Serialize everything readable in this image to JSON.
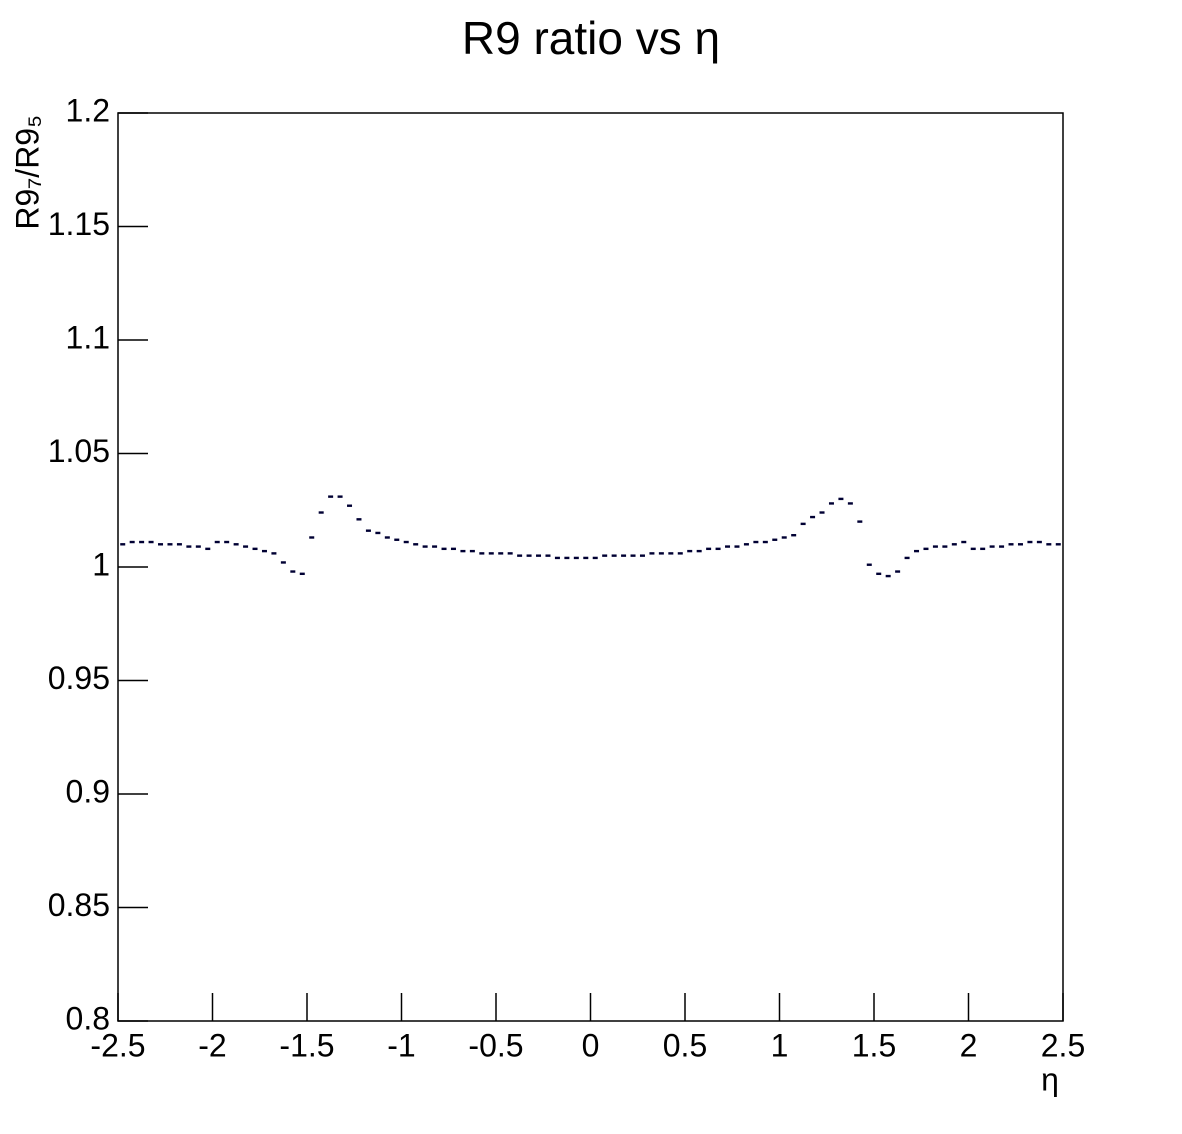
{
  "chart_data": {
    "type": "scatter",
    "title": "R9 ratio vs η",
    "xlabel": "η",
    "ylabel": "R9₇/R9₅",
    "color": "#000033",
    "xlim": [
      -2.5,
      2.5
    ],
    "ylim": [
      0.8,
      1.2
    ],
    "xticks": [
      -2.5,
      -2,
      -1.5,
      -1,
      -0.5,
      0,
      0.5,
      1,
      1.5,
      2,
      2.5
    ],
    "yticks": [
      0.8,
      0.85,
      0.9,
      0.95,
      1,
      1.05,
      1.1,
      1.15,
      1.2
    ],
    "x": [
      -2.475,
      -2.425,
      -2.375,
      -2.325,
      -2.275,
      -2.225,
      -2.175,
      -2.125,
      -2.075,
      -2.025,
      -1.975,
      -1.925,
      -1.875,
      -1.825,
      -1.775,
      -1.725,
      -1.675,
      -1.625,
      -1.575,
      -1.525,
      -1.475,
      -1.425,
      -1.375,
      -1.325,
      -1.275,
      -1.225,
      -1.175,
      -1.125,
      -1.075,
      -1.025,
      -0.975,
      -0.925,
      -0.875,
      -0.825,
      -0.775,
      -0.725,
      -0.675,
      -0.625,
      -0.575,
      -0.525,
      -0.475,
      -0.425,
      -0.375,
      -0.325,
      -0.275,
      -0.225,
      -0.175,
      -0.125,
      -0.075,
      -0.025,
      0.025,
      0.075,
      0.125,
      0.175,
      0.225,
      0.275,
      0.325,
      0.375,
      0.425,
      0.475,
      0.525,
      0.575,
      0.625,
      0.675,
      0.725,
      0.775,
      0.825,
      0.875,
      0.925,
      0.975,
      1.025,
      1.075,
      1.125,
      1.175,
      1.225,
      1.275,
      1.325,
      1.375,
      1.425,
      1.475,
      1.525,
      1.575,
      1.625,
      1.675,
      1.725,
      1.775,
      1.825,
      1.875,
      1.925,
      1.975,
      2.025,
      2.075,
      2.125,
      2.175,
      2.225,
      2.275,
      2.325,
      2.375,
      2.425,
      2.475
    ],
    "values": [
      1.01,
      1.011,
      1.011,
      1.011,
      1.01,
      1.01,
      1.01,
      1.009,
      1.009,
      1.008,
      1.011,
      1.011,
      1.01,
      1.009,
      1.008,
      1.007,
      1.006,
      1.002,
      0.998,
      0.997,
      1.013,
      1.024,
      1.031,
      1.031,
      1.027,
      1.021,
      1.016,
      1.015,
      1.013,
      1.012,
      1.011,
      1.01,
      1.009,
      1.009,
      1.008,
      1.008,
      1.007,
      1.007,
      1.006,
      1.006,
      1.006,
      1.006,
      1.005,
      1.005,
      1.005,
      1.005,
      1.004,
      1.004,
      1.004,
      1.004,
      1.004,
      1.005,
      1.005,
      1.005,
      1.005,
      1.005,
      1.006,
      1.006,
      1.006,
      1.006,
      1.007,
      1.007,
      1.008,
      1.008,
      1.009,
      1.009,
      1.01,
      1.011,
      1.011,
      1.012,
      1.013,
      1.014,
      1.019,
      1.022,
      1.024,
      1.028,
      1.03,
      1.028,
      1.02,
      1.001,
      0.997,
      0.996,
      0.998,
      1.004,
      1.007,
      1.008,
      1.009,
      1.009,
      1.01,
      1.011,
      1.008,
      1.008,
      1.009,
      1.009,
      1.01,
      1.01,
      1.011,
      1.011,
      1.01,
      1.01
    ]
  }
}
